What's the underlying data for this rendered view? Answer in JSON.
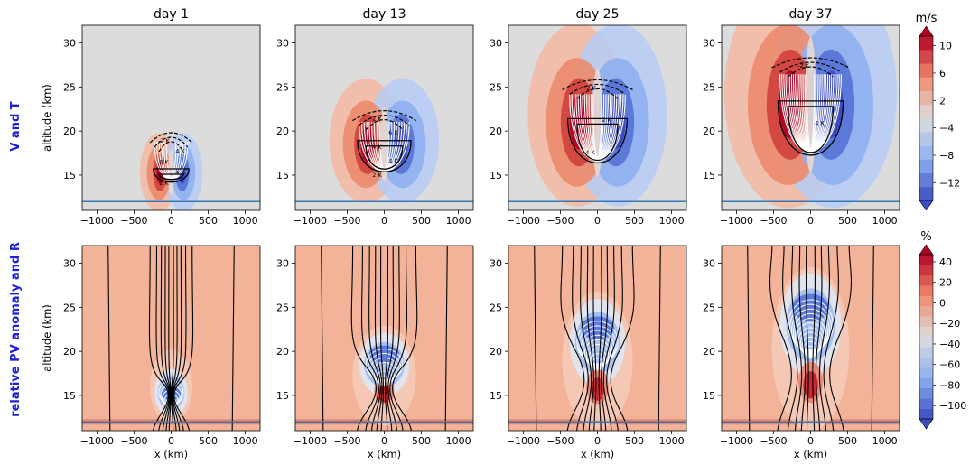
{
  "chart_data": {
    "type": "heatmap",
    "row_labels": [
      "V and T",
      "relative PV anomaly and R"
    ],
    "xlabel": "x (km)",
    "ylabel": "altitude (km)",
    "xlim": [
      -1200,
      1200
    ],
    "ylim": [
      11,
      32
    ],
    "xticks": [
      -1000,
      -500,
      0,
      500,
      1000
    ],
    "xtick_labels": [
      "−1000",
      "−500",
      "0",
      "500",
      "1000"
    ],
    "yticks": [
      15,
      20,
      25,
      30
    ],
    "ytick_labels": [
      "15",
      "20",
      "25",
      "30"
    ],
    "tropopause_altitude_km": 12,
    "panels": [
      {
        "day": "day 1",
        "center_alt_km": 15.3,
        "half_width_km": 300,
        "vt_top_km": 19.5,
        "vt_bottom_km": 13.5,
        "wind_max_ms": 10,
        "pv_min_pct": -100,
        "r_max_pct": 20,
        "contour_labels": [
          "-2 K",
          "4 K",
          "6 K",
          "4 K",
          "2 K"
        ]
      },
      {
        "day": "day 13",
        "center_alt_km": 18.5,
        "half_width_km": 450,
        "vt_top_km": 22,
        "vt_bottom_km": 14,
        "wind_max_ms": 12,
        "pv_min_pct": -100,
        "r_max_pct": 40,
        "contour_labels": [
          "2 K",
          "6 K",
          "4 K",
          "4 K",
          "2 K"
        ]
      },
      {
        "day": "day 25",
        "center_alt_km": 21,
        "half_width_km": 500,
        "vt_top_km": 25.5,
        "vt_bottom_km": 14.5,
        "wind_max_ms": 12,
        "pv_min_pct": -80,
        "r_max_pct": 50,
        "contour_labels": [
          "-2 K",
          "2 K",
          "4 K"
        ]
      },
      {
        "day": "day 37",
        "center_alt_km": 23,
        "half_width_km": 550,
        "vt_top_km": 28,
        "vt_bottom_km": 15,
        "wind_max_ms": 12,
        "pv_min_pct": -80,
        "r_max_pct": 50,
        "contour_labels": [
          "-2 K",
          "4 K"
        ]
      }
    ],
    "colorbars": [
      {
        "title": "m/s",
        "tick_labels": [
          "10",
          "6",
          "2",
          "−4",
          "−8",
          "−12"
        ],
        "levels": [
          -12,
          -10,
          -8,
          -6,
          -4,
          -2,
          0,
          2,
          4,
          6,
          8,
          10,
          12
        ]
      },
      {
        "title": "%",
        "tick_labels": [
          "40",
          "20",
          "0",
          "−20",
          "−40",
          "−60",
          "−80",
          "−100"
        ],
        "levels": [
          -110,
          -100,
          -90,
          -80,
          -70,
          -60,
          -50,
          -40,
          -30,
          -20,
          -10,
          0,
          10,
          20,
          30,
          40,
          50
        ]
      }
    ],
    "colors": {
      "neutral": "#dcdcdc",
      "tropopause_line": "#3a78b5",
      "red": "#b40426",
      "blue": "#3b4cc0"
    }
  }
}
